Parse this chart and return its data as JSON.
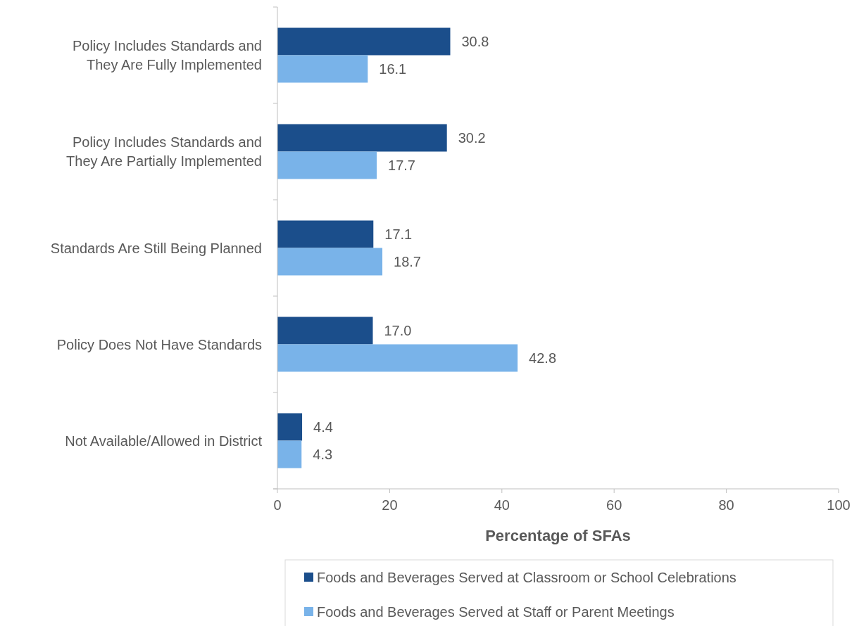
{
  "chart_data": {
    "type": "bar",
    "orientation": "horizontal",
    "xlabel": "Percentage of SFAs",
    "categories": [
      "Policy Includes Standards and They Are Fully Implemented",
      "Policy Includes Standards and They Are Partially Implemented",
      "Standards Are Still Being Planned",
      "Policy Does Not Have Standards",
      "Not Available/Allowed in District"
    ],
    "series": [
      {
        "name": "Foods and Beverages Served at Classroom or School Celebrations",
        "color": "#1b4e8b",
        "values": [
          30.8,
          30.2,
          17.1,
          17.0,
          4.4
        ],
        "value_labels": [
          "30.8",
          "30.2",
          "17.1",
          "17.0",
          "4.4"
        ]
      },
      {
        "name": "Foods and Beverages Served at Staff or Parent Meetings",
        "color": "#79b3e9",
        "values": [
          16.1,
          17.7,
          18.7,
          42.8,
          4.3
        ],
        "value_labels": [
          "16.1",
          "17.7",
          "18.7",
          "42.8",
          "4.3"
        ]
      }
    ],
    "xlim": [
      0,
      100
    ],
    "xticks": [
      0,
      20,
      40,
      60,
      80,
      100
    ],
    "grid": false,
    "legend": "bottom"
  }
}
